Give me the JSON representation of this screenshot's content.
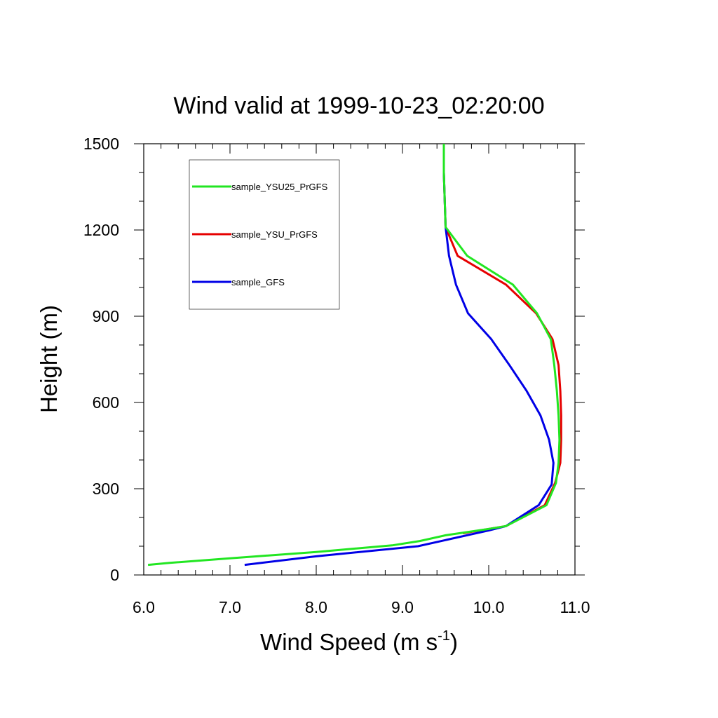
{
  "chart_data": {
    "type": "line",
    "title": "Wind valid at 1999-10-23_02:20:00",
    "xlabel": "Wind Speed (m s",
    "xlabel_superscript": "-1",
    "xlabel_suffix": ")",
    "ylabel": "Height (m)",
    "xlim": [
      6.0,
      11.0
    ],
    "ylim": [
      0,
      1500
    ],
    "x_ticks": [
      6.0,
      7.0,
      8.0,
      9.0,
      10.0,
      11.0
    ],
    "x_tick_labels": [
      "6.0",
      "7.0",
      "8.0",
      "9.0",
      "10.0",
      "11.0"
    ],
    "y_ticks": [
      0,
      300,
      600,
      900,
      1200,
      1500
    ],
    "y_tick_labels": [
      "0",
      "300",
      "600",
      "900",
      "1200",
      "1500"
    ],
    "grid": false,
    "legend_position": "top-left",
    "series": [
      {
        "name": "sample_YSU25_PrGFS",
        "color": "#22e622",
        "points": [
          [
            6.05,
            35
          ],
          [
            6.3,
            42
          ],
          [
            7.0,
            58
          ],
          [
            8.0,
            80
          ],
          [
            8.88,
            103
          ],
          [
            9.2,
            118
          ],
          [
            9.5,
            138
          ],
          [
            10.0,
            160
          ],
          [
            10.2,
            170
          ],
          [
            10.67,
            243
          ],
          [
            10.78,
            320
          ],
          [
            10.81,
            390
          ],
          [
            10.82,
            470
          ],
          [
            10.81,
            555
          ],
          [
            10.79,
            640
          ],
          [
            10.76,
            730
          ],
          [
            10.72,
            820
          ],
          [
            10.56,
            910
          ],
          [
            10.28,
            1010
          ],
          [
            9.75,
            1110
          ],
          [
            9.5,
            1210
          ],
          [
            9.49,
            1300
          ],
          [
            9.48,
            1400
          ],
          [
            9.48,
            1500
          ]
        ]
      },
      {
        "name": "sample_YSU_PrGFS",
        "color": "#e60000",
        "points": [
          [
            9.7,
            145
          ],
          [
            10.2,
            170
          ],
          [
            10.65,
            243
          ],
          [
            10.77,
            320
          ],
          [
            10.83,
            390
          ],
          [
            10.84,
            470
          ],
          [
            10.84,
            555
          ],
          [
            10.83,
            640
          ],
          [
            10.81,
            730
          ],
          [
            10.74,
            820
          ],
          [
            10.55,
            910
          ],
          [
            10.2,
            1010
          ],
          [
            9.64,
            1110
          ],
          [
            9.5,
            1210
          ],
          [
            9.49,
            1300
          ],
          [
            9.48,
            1400
          ],
          [
            9.48,
            1500
          ]
        ]
      },
      {
        "name": "sample_GFS",
        "color": "#0000e6",
        "points": [
          [
            7.17,
            35
          ],
          [
            8.0,
            65
          ],
          [
            9.18,
            100
          ],
          [
            10.0,
            155
          ],
          [
            10.2,
            170
          ],
          [
            10.58,
            243
          ],
          [
            10.73,
            315
          ],
          [
            10.75,
            390
          ],
          [
            10.7,
            470
          ],
          [
            10.6,
            555
          ],
          [
            10.44,
            640
          ],
          [
            10.24,
            730
          ],
          [
            10.03,
            820
          ],
          [
            9.76,
            910
          ],
          [
            9.62,
            1010
          ],
          [
            9.54,
            1110
          ],
          [
            9.5,
            1210
          ],
          [
            9.49,
            1300
          ],
          [
            9.48,
            1400
          ],
          [
            9.48,
            1500
          ]
        ]
      }
    ]
  }
}
